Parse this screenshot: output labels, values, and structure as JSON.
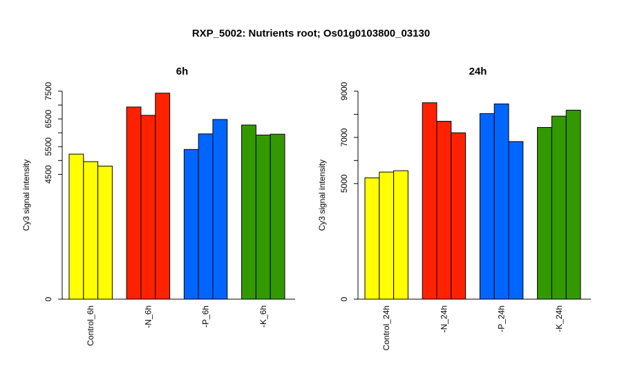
{
  "title": "RXP_5002: Nutrients root; Os01g0103800_03130",
  "chart_data": [
    {
      "type": "bar",
      "title": "6h",
      "ylabel": "Cy3 signal intensity",
      "ylim": [
        0,
        7500
      ],
      "yticks": [
        0,
        4500,
        5000,
        5500,
        6000,
        6500,
        7000,
        7500
      ],
      "ytick_labels": [
        "0",
        "4500",
        "",
        "5500",
        "",
        "6500",
        "",
        "7500"
      ],
      "categories": [
        "Control_6h",
        "-N_6h",
        "-P_6h",
        "-K_6h"
      ],
      "colors": [
        "#ffff00",
        "#ff2200",
        "#0066ff",
        "#339900"
      ],
      "values": [
        [
          5230,
          4960,
          4800
        ],
        [
          6930,
          6630,
          7430
        ],
        [
          5400,
          5960,
          6480
        ],
        [
          6280,
          5920,
          5950
        ]
      ]
    },
    {
      "type": "bar",
      "title": "24h",
      "ylabel": "Cy3 signal intensity",
      "ylim": [
        0,
        9000
      ],
      "yticks": [
        0,
        5000,
        6000,
        7000,
        8000,
        9000
      ],
      "ytick_labels": [
        "0",
        "5000",
        "",
        "7000",
        "",
        "9000"
      ],
      "categories": [
        "Control_24h",
        "-N_24h",
        "-P_24h",
        "-K_24h"
      ],
      "colors": [
        "#ffff00",
        "#ff2200",
        "#0066ff",
        "#339900"
      ],
      "values": [
        [
          5250,
          5500,
          5560
        ],
        [
          8500,
          7700,
          7200
        ],
        [
          8030,
          8450,
          6820
        ],
        [
          7430,
          7920,
          8180
        ]
      ]
    }
  ]
}
